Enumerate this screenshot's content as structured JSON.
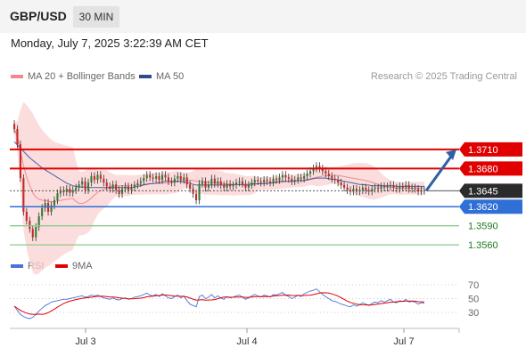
{
  "header": {
    "symbol": "GBP/USD",
    "timeframe": "30 MIN"
  },
  "datetime": "Monday, July 7, 2025 3:22:39 AM CET",
  "legend": {
    "ma20_label": "MA 20 + Bollinger Bands",
    "ma50_label": "MA 50",
    "credit": "Research © 2025 Trading Central",
    "rsi_label": "RSI",
    "ma9_label": "9MA"
  },
  "colors": {
    "resistance": "#e00000",
    "current": "#2b2b2b",
    "pivot": "#2f6fd6",
    "support": "#8cc98c",
    "support_text": "#1e7a1e",
    "bollinger": "#fbd2d2",
    "ma20": "#f08a8a",
    "ma50": "#4a5fa0",
    "candle_up": "#2e7d32",
    "candle_down": "#c62828",
    "arrow": "#2f5fa6",
    "rsi": "#4a73d9",
    "ma9": "#e00000"
  },
  "chart_data": [
    {
      "type": "candlestick",
      "price_range": [
        1.3542,
        1.3805
      ],
      "x_ticks": [
        "Jul 3",
        "Jul 4",
        "Jul 7"
      ],
      "current_price": 1.3645,
      "levels": [
        {
          "label": "1.3710",
          "value": 1.371,
          "kind": "resistance"
        },
        {
          "label": "1.3680",
          "value": 1.368,
          "kind": "resistance"
        },
        {
          "label": "1.3645",
          "value": 1.3645,
          "kind": "current"
        },
        {
          "label": "1.3620",
          "value": 1.362,
          "kind": "pivot"
        },
        {
          "label": "1.3590",
          "value": 1.359,
          "kind": "support"
        },
        {
          "label": "1.3560",
          "value": 1.356,
          "kind": "support"
        }
      ],
      "projection": {
        "from": 1.3645,
        "to": 1.371,
        "direction": "up"
      },
      "series": [
        {
          "name": "MA 20 + Bollinger Bands"
        },
        {
          "name": "MA 50"
        }
      ],
      "close": [
        1.3742,
        1.3718,
        1.3665,
        1.3612,
        1.3598,
        1.3585,
        1.3572,
        1.3588,
        1.3605,
        1.3618,
        1.3626,
        1.3612,
        1.3622,
        1.363,
        1.3641,
        1.3646,
        1.3643,
        1.3648,
        1.3642,
        1.3646,
        1.365,
        1.3655,
        1.366,
        1.3646,
        1.3658,
        1.3668,
        1.3662,
        1.367,
        1.3664,
        1.3658,
        1.3652,
        1.3648,
        1.3655,
        1.3646,
        1.364,
        1.3648,
        1.3652,
        1.3646,
        1.365,
        1.3654,
        1.3657,
        1.366,
        1.3665,
        1.367,
        1.3666,
        1.3664,
        1.3668,
        1.3662,
        1.367,
        1.3666,
        1.366,
        1.3658,
        1.3664,
        1.3668,
        1.3662,
        1.3666,
        1.3655,
        1.3648,
        1.364,
        1.363,
        1.3656,
        1.366,
        1.365,
        1.3655,
        1.3664,
        1.3656,
        1.366,
        1.3654,
        1.365,
        1.3656,
        1.3652,
        1.3654,
        1.3658,
        1.366,
        1.3656,
        1.365,
        1.3654,
        1.3658,
        1.3662,
        1.366,
        1.3658,
        1.3662,
        1.366,
        1.3658,
        1.3664,
        1.3662,
        1.3666,
        1.367,
        1.3666,
        1.3664,
        1.366,
        1.3662,
        1.3666,
        1.3664,
        1.3668,
        1.3672,
        1.3676,
        1.368,
        1.3684,
        1.368,
        1.3676,
        1.3672,
        1.3668,
        1.3664,
        1.3662,
        1.3658,
        1.3654,
        1.365,
        1.3646,
        1.3644,
        1.3648,
        1.3644,
        1.3646,
        1.365,
        1.3646,
        1.3644,
        1.3648,
        1.365,
        1.3648,
        1.3652,
        1.365,
        1.3652,
        1.3654,
        1.365,
        1.3648,
        1.3652,
        1.365,
        1.3654,
        1.3648,
        1.365,
        1.3648,
        1.3644,
        1.3646,
        1.3645
      ],
      "ma50": [
        1.3722,
        1.3717,
        1.3712,
        1.3707,
        1.3702,
        1.3697,
        1.3693,
        1.3689,
        1.3685,
        1.3681,
        1.3678,
        1.3675,
        1.3672,
        1.3669,
        1.3666,
        1.3663,
        1.366,
        1.3657,
        1.3655,
        1.3653,
        1.3652,
        1.3651,
        1.3651,
        1.3651,
        1.365,
        1.365,
        1.365,
        1.365,
        1.365,
        1.365,
        1.365,
        1.365,
        1.365,
        1.365,
        1.365,
        1.365,
        1.365,
        1.365,
        1.365,
        1.3651,
        1.3652,
        1.3653,
        1.3654,
        1.3655,
        1.3656,
        1.3656,
        1.3657,
        1.3658,
        1.3659,
        1.366,
        1.366,
        1.366,
        1.366,
        1.366,
        1.366,
        1.3659,
        1.3658,
        1.3657,
        1.3655,
        1.3654,
        1.3654,
        1.3654,
        1.3654,
        1.3654,
        1.3654,
        1.3654,
        1.3654,
        1.3654,
        1.3654,
        1.3654,
        1.3654,
        1.3655,
        1.3655,
        1.3655,
        1.3655,
        1.3655,
        1.3655,
        1.3656,
        1.3656,
        1.3656,
        1.3656,
        1.3656,
        1.3657,
        1.3657,
        1.3658,
        1.3659,
        1.366,
        1.366,
        1.366,
        1.366,
        1.366,
        1.366,
        1.3661,
        1.3661,
        1.3661,
        1.3662,
        1.3663,
        1.3664,
        1.3665,
        1.3665,
        1.3665,
        1.3665,
        1.3664,
        1.3663,
        1.3663,
        1.3662,
        1.3661,
        1.366,
        1.3659,
        1.3658,
        1.3657,
        1.3656,
        1.3655,
        1.3655,
        1.3654,
        1.3654,
        1.3653,
        1.3653,
        1.3653,
        1.3653,
        1.3653,
        1.3653,
        1.3653,
        1.3653,
        1.3652,
        1.3652,
        1.3652,
        1.3652,
        1.3652,
        1.3652,
        1.3652,
        1.3652,
        1.3652,
        1.3652
      ]
    },
    {
      "type": "line",
      "series": [
        {
          "name": "RSI",
          "values": [
            39,
            33,
            27,
            24,
            22,
            21,
            23,
            27,
            32,
            36,
            40,
            42,
            45,
            46,
            47,
            48,
            49,
            49,
            50,
            51,
            52,
            53,
            54,
            52,
            53,
            55,
            54,
            55,
            53,
            51,
            50,
            49,
            51,
            49,
            48,
            50,
            51,
            49,
            50,
            52,
            53,
            54,
            56,
            58,
            55,
            54,
            56,
            53,
            57,
            54,
            51,
            50,
            53,
            55,
            51,
            54,
            47,
            42,
            40,
            38,
            53,
            55,
            50,
            52,
            56,
            51,
            54,
            51,
            49,
            53,
            51,
            52,
            54,
            55,
            52,
            49,
            51,
            54,
            56,
            54,
            52,
            55,
            54,
            52,
            56,
            55,
            57,
            59,
            55,
            53,
            50,
            52,
            55,
            53,
            57,
            59,
            61,
            62,
            64,
            60,
            56,
            53,
            50,
            47,
            46,
            44,
            42,
            41,
            39,
            38,
            41,
            39,
            41,
            44,
            42,
            40,
            43,
            45,
            44,
            47,
            45,
            47,
            49,
            45,
            44,
            47,
            46,
            49,
            45,
            46,
            45,
            42,
            44,
            43
          ]
        },
        {
          "name": "9MA"
        }
      ],
      "ylim": [
        0,
        100
      ],
      "y_ticks": [
        70,
        50,
        30
      ]
    }
  ]
}
